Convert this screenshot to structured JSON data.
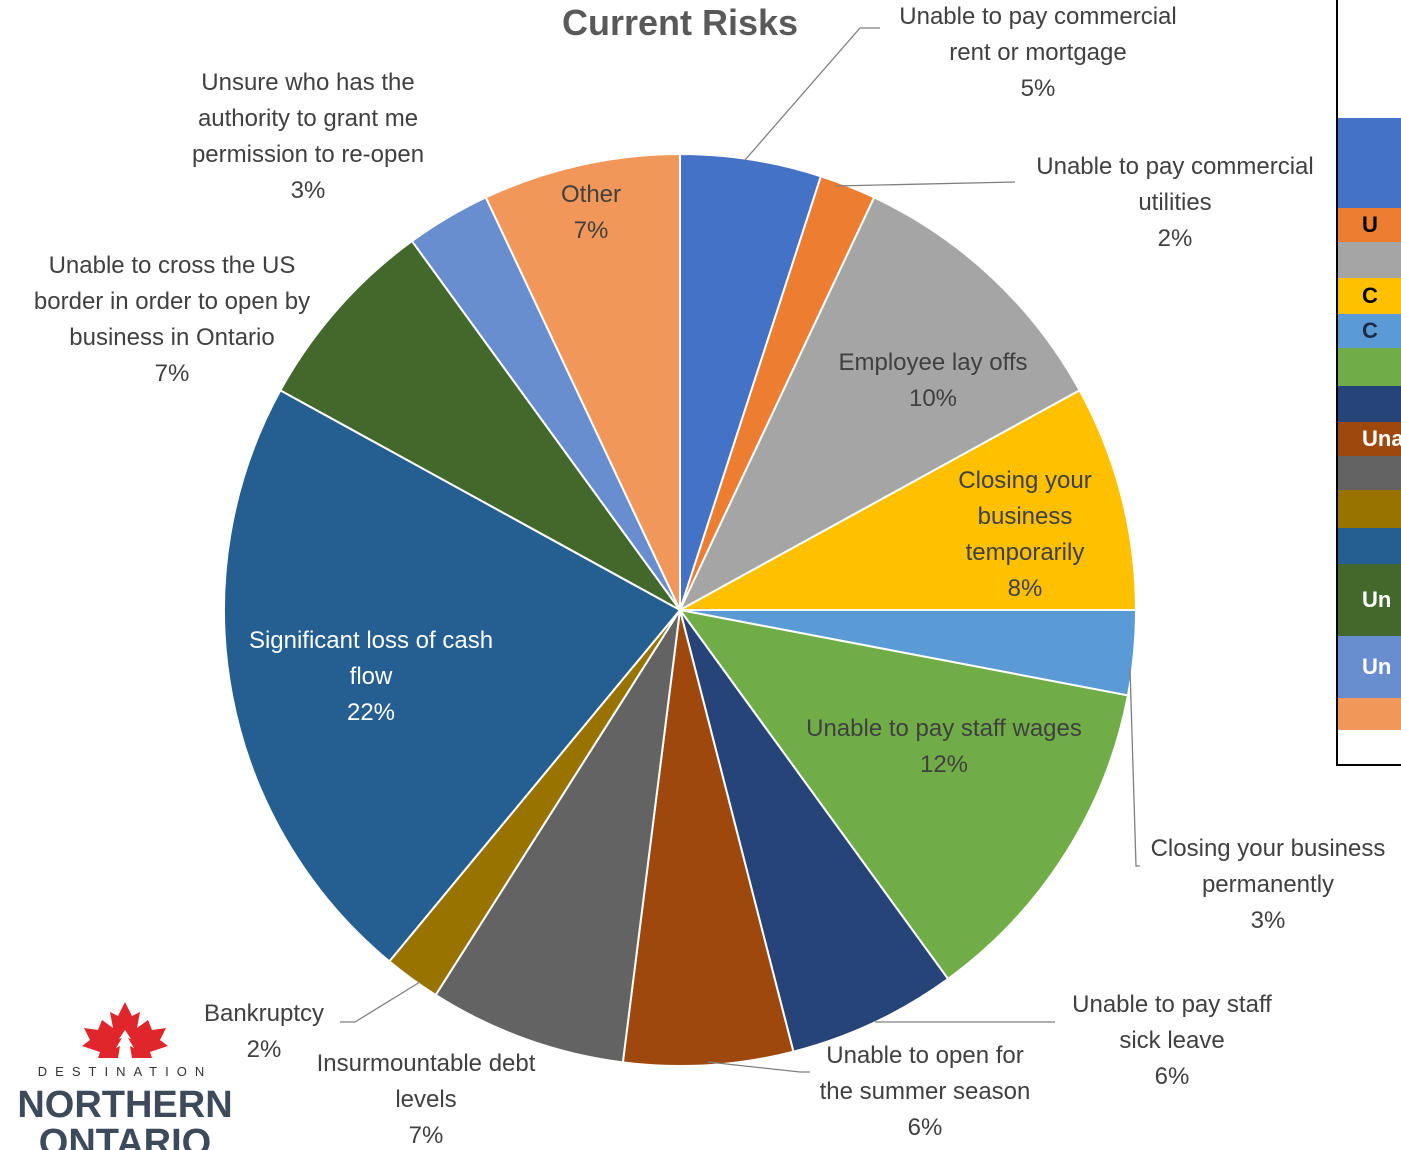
{
  "logo": {
    "line1": "DESTINATION",
    "line2": "NORTHERN",
    "line3": "ONTARIO",
    "leaf_color": "#e0262b"
  },
  "chart_data": {
    "type": "pie",
    "title": "Current Risks",
    "slices": [
      {
        "label": "Unable to pay commercial rent or mortgage",
        "value": 5,
        "pct_text": "5%",
        "color": "#4472C4"
      },
      {
        "label": "Unable to pay commercial utilities",
        "value": 2,
        "pct_text": "2%",
        "color": "#ED7D31"
      },
      {
        "label": "Employee lay offs",
        "value": 10,
        "pct_text": "10%",
        "color": "#A5A5A5"
      },
      {
        "label": "Closing your business temporarily",
        "value": 8,
        "pct_text": "8%",
        "color": "#FFC000"
      },
      {
        "label": "Closing your business permanently",
        "value": 3,
        "pct_text": "3%",
        "color": "#5B9BD5"
      },
      {
        "label": "Unable to pay staff wages",
        "value": 12,
        "pct_text": "12%",
        "color": "#70AD47"
      },
      {
        "label": "Unable to pay staff sick leave",
        "value": 6,
        "pct_text": "6%",
        "color": "#264478"
      },
      {
        "label": "Unable to open for the summer season",
        "value": 6,
        "pct_text": "6%",
        "color": "#9E480E"
      },
      {
        "label": "Insurmountable debt levels",
        "value": 7,
        "pct_text": "7%",
        "color": "#636363"
      },
      {
        "label": "Bankruptcy",
        "value": 2,
        "pct_text": "2%",
        "color": "#997300"
      },
      {
        "label": "Significant loss of cash flow",
        "value": 22,
        "pct_text": "22%",
        "color": "#255E91"
      },
      {
        "label": "Unable to cross the US border in order to open by business in Ontario",
        "value": 7,
        "pct_text": "7%",
        "color": "#43682B"
      },
      {
        "label": "Unsure who has the authority to grant me permission to re-open",
        "value": 3,
        "pct_text": "3%",
        "color": "#698ED0"
      },
      {
        "label": "Other",
        "value": 7,
        "pct_text": "7%",
        "color": "#F1975A"
      }
    ]
  },
  "side_table": {
    "rows": [
      {
        "text": "",
        "color": "#ffffff",
        "text_color": "#000000"
      },
      {
        "text": "",
        "color": "#4472C4",
        "text_color": "#ffffff"
      },
      {
        "text": "U",
        "color": "#ED7D31",
        "text_color": "#000000"
      },
      {
        "text": "",
        "color": "#A5A5A5",
        "text_color": "#000000"
      },
      {
        "text": "C",
        "color": "#FFC000",
        "text_color": "#000000"
      },
      {
        "text": "C",
        "color": "#5B9BD5",
        "text_color": "#1f2a44"
      },
      {
        "text": "",
        "color": "#70AD47",
        "text_color": "#000000"
      },
      {
        "text": "",
        "color": "#264478",
        "text_color": "#ffffff"
      },
      {
        "text": "Una",
        "color": "#9E480E",
        "text_color": "#ffffff"
      },
      {
        "text": "",
        "color": "#636363",
        "text_color": "#ffffff"
      },
      {
        "text": "",
        "color": "#997300",
        "text_color": "#ffffff"
      },
      {
        "text": "",
        "color": "#255E91",
        "text_color": "#ffffff"
      },
      {
        "text": "Un",
        "color": "#43682B",
        "text_color": "#ffffff"
      },
      {
        "text": "Un",
        "color": "#698ED0",
        "text_color": "#ffffff"
      },
      {
        "text": "",
        "color": "#F1975A",
        "text_color": "#000000"
      }
    ]
  }
}
